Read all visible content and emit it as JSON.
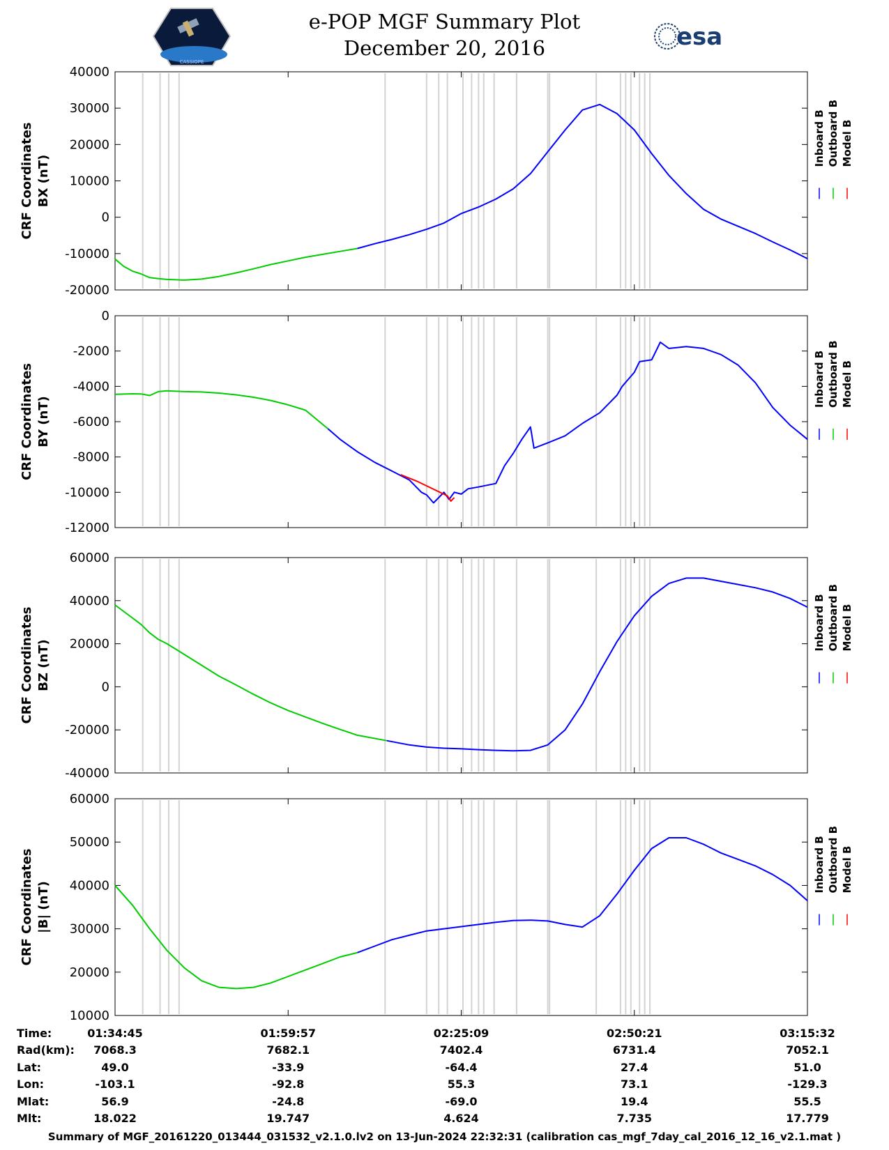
{
  "header": {
    "title": "e-POP MGF Summary Plot",
    "date": "December 20, 2016",
    "logo_left": "e-POP CASSIOPE mission logo",
    "logo_left_text": "CASSIOPE",
    "logo_right_text": "esa"
  },
  "colors": {
    "inboard": "#0000ff",
    "outboard": "#00cc00",
    "model": "#ff0000",
    "gap": "#d3d3d3"
  },
  "chart_data": [
    {
      "type": "line",
      "title": "CRF Coordinates BX (nT)",
      "ylabel_line1": "CRF Coordinates",
      "ylabel_line2": "BX (nT)",
      "ylim": [
        -20000,
        40000
      ],
      "yticks": [
        40000,
        30000,
        20000,
        10000,
        0,
        -10000,
        -20000
      ],
      "legend": [
        "Inboard B",
        "Outboard B",
        "Model B"
      ],
      "series": [
        {
          "name": "Outboard B",
          "x": [
            0,
            0.5,
            1,
            1.5,
            2,
            2.5,
            3,
            4,
            5,
            6,
            7,
            8,
            9,
            10,
            11,
            12,
            13,
            14
          ],
          "y": [
            -11500,
            -13500,
            -14800,
            -15600,
            -16600,
            -16900,
            -17100,
            -17300,
            -17000,
            -16300,
            -15300,
            -14200,
            -13000,
            -12000,
            -11000,
            -10200,
            -9400,
            -8600
          ]
        },
        {
          "name": "Inboard B",
          "x": [
            14,
            15,
            16,
            17,
            18,
            19,
            20,
            21,
            22,
            23,
            24,
            25,
            26,
            27,
            28,
            29,
            30,
            31,
            32,
            33,
            34,
            35,
            36,
            37,
            38,
            39,
            40
          ],
          "y": [
            -8600,
            -7300,
            -6100,
            -4800,
            -3300,
            -1600,
            1000,
            2800,
            5000,
            7800,
            12000,
            18000,
            24000,
            29500,
            31000,
            28500,
            24000,
            17500,
            11500,
            6500,
            2200,
            -500,
            -2500,
            -4500,
            -6800,
            -9000,
            -11400
          ]
        },
        {
          "name": "Model B",
          "x": [],
          "y": []
        }
      ]
    },
    {
      "type": "line",
      "title": "CRF Coordinates BY (nT)",
      "ylabel_line1": "CRF Coordinates",
      "ylabel_line2": "BY (nT)",
      "ylim": [
        -12000,
        0
      ],
      "yticks": [
        0,
        -2000,
        -4000,
        -6000,
        -8000,
        -10000,
        -12000
      ],
      "legend": [
        "Inboard B",
        "Outboard B",
        "Model B"
      ],
      "series": [
        {
          "name": "Outboard B",
          "x": [
            0,
            1,
            1.5,
            2,
            2.5,
            3,
            4,
            5,
            6,
            7,
            8,
            9,
            10,
            11,
            12.3
          ],
          "y": [
            -4450,
            -4420,
            -4430,
            -4520,
            -4300,
            -4250,
            -4300,
            -4320,
            -4380,
            -4480,
            -4620,
            -4800,
            -5050,
            -5350,
            -6400
          ]
        },
        {
          "name": "Inboard B",
          "x": [
            12.3,
            13,
            14,
            15,
            16,
            17,
            17.7,
            18,
            18.4,
            19,
            19.3,
            19.6,
            20,
            20.4,
            21,
            21.5,
            22,
            22.5,
            23,
            23.5,
            24,
            24.2,
            25,
            26,
            27,
            28,
            28.5,
            29,
            29.3,
            30,
            30.3,
            31,
            31.5,
            32,
            32.5,
            33,
            34,
            35,
            36,
            37,
            38,
            39,
            40
          ],
          "y": [
            -6400,
            -7000,
            -7700,
            -8300,
            -8800,
            -9300,
            -10000,
            -10150,
            -10600,
            -10000,
            -10400,
            -10000,
            -10100,
            -9800,
            -9700,
            -9600,
            -9500,
            -8500,
            -7800,
            -7000,
            -6300,
            -7500,
            -7200,
            -6800,
            -6100,
            -5500,
            -5000,
            -4500,
            -4000,
            -3200,
            -2600,
            -2500,
            -1500,
            -1850,
            -1800,
            -1750,
            -1850,
            -2200,
            -2800,
            -3800,
            -5200,
            -6200,
            -7000
          ]
        },
        {
          "name": "Model B",
          "x": [
            16.5,
            17,
            17.5,
            19.2,
            19.4,
            19.6
          ],
          "y": [
            -9000,
            -9200,
            -9400,
            -10200,
            -10500,
            -10300
          ]
        }
      ]
    },
    {
      "type": "line",
      "title": "CRF Coordinates BZ (nT)",
      "ylabel_line1": "CRF Coordinates",
      "ylabel_line2": "BZ (nT)",
      "ylim": [
        -40000,
        60000
      ],
      "yticks": [
        60000,
        40000,
        20000,
        0,
        -20000,
        -40000
      ],
      "legend": [
        "Inboard B",
        "Outboard B",
        "Model B"
      ],
      "series": [
        {
          "name": "Outboard B",
          "x": [
            0,
            1,
            1.5,
            2,
            2.5,
            3,
            4,
            5,
            6,
            7,
            8,
            9,
            10,
            11,
            12,
            13,
            14,
            15.7
          ],
          "y": [
            38000,
            32000,
            29000,
            25000,
            22000,
            20000,
            15000,
            10000,
            5000,
            800,
            -3500,
            -7500,
            -11000,
            -14000,
            -17000,
            -19800,
            -22500,
            -25000
          ]
        },
        {
          "name": "Inboard B",
          "x": [
            15.7,
            17,
            18,
            19,
            20,
            21,
            22,
            23,
            24,
            25,
            26,
            27,
            28,
            29,
            30,
            31,
            32,
            33,
            34,
            35,
            36,
            37,
            38,
            39,
            40
          ],
          "y": [
            -25000,
            -27000,
            -28000,
            -28500,
            -28800,
            -29200,
            -29500,
            -29700,
            -29500,
            -27000,
            -20000,
            -8000,
            7000,
            21000,
            33000,
            42000,
            48000,
            50500,
            50500,
            49000,
            47500,
            46000,
            44000,
            41000,
            37000
          ]
        },
        {
          "name": "Model B",
          "x": [],
          "y": []
        }
      ]
    },
    {
      "type": "line",
      "title": "CRF Coordinates |B| (nT)",
      "ylabel_line1": "CRF Coordinates",
      "ylabel_line2": "|B| (nT)",
      "ylim": [
        10000,
        60000
      ],
      "yticks": [
        60000,
        50000,
        40000,
        30000,
        20000,
        10000
      ],
      "legend": [
        "Inboard B",
        "Outboard B",
        "Model B"
      ],
      "series": [
        {
          "name": "Outboard B",
          "x": [
            0,
            1,
            2,
            3,
            4,
            5,
            6,
            7,
            8,
            9,
            10,
            11,
            12,
            13,
            14
          ],
          "y": [
            40000,
            35500,
            30000,
            25000,
            21000,
            18000,
            16500,
            16200,
            16500,
            17500,
            19000,
            20500,
            22000,
            23500,
            24500
          ]
        },
        {
          "name": "Inboard B",
          "x": [
            14,
            15,
            16,
            17,
            18,
            19,
            20,
            21,
            22,
            23,
            24,
            25,
            26,
            27,
            28,
            29,
            30,
            31,
            32,
            33,
            34,
            35,
            36,
            37,
            38,
            39,
            40
          ],
          "y": [
            24500,
            26000,
            27500,
            28500,
            29500,
            30000,
            30500,
            31000,
            31500,
            31900,
            32000,
            31800,
            31000,
            30400,
            33000,
            38000,
            43500,
            48500,
            51000,
            51000,
            49500,
            47500,
            46000,
            44500,
            42500,
            40000,
            36500
          ]
        },
        {
          "name": "Model B",
          "x": [],
          "y": []
        }
      ]
    }
  ],
  "x_axis": {
    "range": [
      0,
      40
    ],
    "gap_positions": [
      1.6,
      2.6,
      3.1,
      3.7,
      15.6,
      18.0,
      18.7,
      19.2,
      20.1,
      20.6,
      21.0,
      21.3,
      21.9,
      23.2,
      25.0,
      25.1,
      27.8,
      29.2,
      29.5,
      29.8,
      30.3,
      30.6,
      30.9
    ]
  },
  "info_table": {
    "row_labels": [
      "Time:",
      "Rad(km):",
      "Lat:",
      "Lon:",
      "Mlat:",
      "Mlt:"
    ],
    "columns": [
      {
        "Time": "01:34:45",
        "Rad": "7068.3",
        "Lat": "49.0",
        "Lon": "-103.1",
        "Mlat": "56.9",
        "Mlt": "18.022"
      },
      {
        "Time": "01:59:57",
        "Rad": "7682.1",
        "Lat": "-33.9",
        "Lon": "-92.8",
        "Mlat": "-24.8",
        "Mlt": "19.747"
      },
      {
        "Time": "02:25:09",
        "Rad": "7402.4",
        "Lat": "-64.4",
        "Lon": "55.3",
        "Mlat": "-69.0",
        "Mlt": "4.624"
      },
      {
        "Time": "02:50:21",
        "Rad": "6731.4",
        "Lat": "27.4",
        "Lon": "73.1",
        "Mlat": "19.4",
        "Mlt": "7.735"
      },
      {
        "Time": "03:15:32",
        "Rad": "7052.1",
        "Lat": "51.0",
        "Lon": "-129.3",
        "Mlat": "55.5",
        "Mlt": "17.779"
      }
    ]
  },
  "footer": "Summary of MGF_20161220_013444_031532_v2.1.0.lv2 on 13-Jun-2024 22:32:31 (calibration cas_mgf_7day_cal_2016_12_16_v2.1.mat )"
}
